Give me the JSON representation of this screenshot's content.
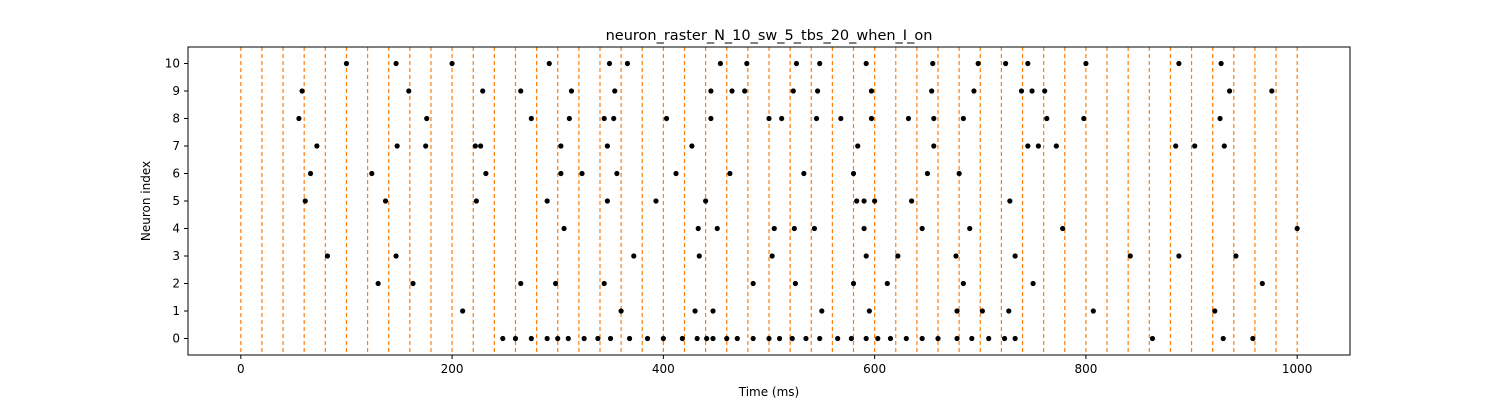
{
  "chart_data": {
    "type": "scatter",
    "title": "neuron_raster_N_10_sw_5_tbs_20_when_I_on",
    "xlabel": "Time (ms)",
    "ylabel": "Neuron index",
    "xlim": [
      -50,
      1050
    ],
    "ylim": [
      -0.6,
      10.6
    ],
    "x_ticks": [
      0,
      200,
      400,
      600,
      800,
      1000
    ],
    "y_ticks": [
      0,
      1,
      2,
      3,
      4,
      5,
      6,
      7,
      8,
      9,
      10
    ],
    "grid": false,
    "marker_color": "#000000",
    "vline_color": "#ff7f0e",
    "vline_style": "dashed",
    "vlines": [
      0,
      20,
      40,
      60,
      80,
      100,
      120,
      140,
      160,
      180,
      200,
      220,
      240,
      260,
      280,
      300,
      320,
      340,
      360,
      380,
      400,
      420,
      440,
      460,
      480,
      500,
      520,
      540,
      560,
      580,
      600,
      620,
      640,
      660,
      680,
      700,
      720,
      740,
      760,
      780,
      800,
      820,
      840,
      860,
      880,
      900,
      920,
      940,
      960,
      980,
      1000
    ],
    "series": [
      {
        "values": [
          [
            248,
            0
          ],
          [
            260,
            0
          ],
          [
            275,
            0
          ],
          [
            290,
            0
          ],
          [
            300,
            0
          ],
          [
            310,
            0
          ],
          [
            325,
            0
          ],
          [
            338,
            0
          ],
          [
            350,
            0
          ],
          [
            368,
            0
          ],
          [
            385,
            0
          ],
          [
            400,
            0
          ],
          [
            418,
            0
          ],
          [
            432,
            0
          ],
          [
            441,
            0
          ],
          [
            447,
            0
          ],
          [
            460,
            0
          ],
          [
            470,
            0
          ],
          [
            485,
            0
          ],
          [
            500,
            0
          ],
          [
            510,
            0
          ],
          [
            522,
            0
          ],
          [
            535,
            0
          ],
          [
            548,
            0
          ],
          [
            565,
            0
          ],
          [
            578,
            0
          ],
          [
            592,
            0
          ],
          [
            603,
            0
          ],
          [
            615,
            0
          ],
          [
            630,
            0
          ],
          [
            645,
            0
          ],
          [
            660,
            0
          ],
          [
            678,
            0
          ],
          [
            692,
            0
          ],
          [
            708,
            0
          ],
          [
            723,
            0
          ],
          [
            733,
            0
          ],
          [
            863,
            0
          ],
          [
            930,
            0
          ],
          [
            958,
            0
          ],
          [
            210,
            1
          ],
          [
            360,
            1
          ],
          [
            430,
            1
          ],
          [
            447,
            1
          ],
          [
            550,
            1
          ],
          [
            595,
            1
          ],
          [
            678,
            1
          ],
          [
            702,
            1
          ],
          [
            727,
            1
          ],
          [
            807,
            1
          ],
          [
            922,
            1
          ],
          [
            130,
            2
          ],
          [
            163,
            2
          ],
          [
            265,
            2
          ],
          [
            298,
            2
          ],
          [
            344,
            2
          ],
          [
            485,
            2
          ],
          [
            525,
            2
          ],
          [
            580,
            2
          ],
          [
            612,
            2
          ],
          [
            684,
            2
          ],
          [
            750,
            2
          ],
          [
            967,
            2
          ],
          [
            82,
            3
          ],
          [
            147,
            3
          ],
          [
            372,
            3
          ],
          [
            434,
            3
          ],
          [
            503,
            3
          ],
          [
            592,
            3
          ],
          [
            622,
            3
          ],
          [
            677,
            3
          ],
          [
            733,
            3
          ],
          [
            842,
            3
          ],
          [
            888,
            3
          ],
          [
            942,
            3
          ],
          [
            306,
            4
          ],
          [
            433,
            4
          ],
          [
            451,
            4
          ],
          [
            505,
            4
          ],
          [
            524,
            4
          ],
          [
            543,
            4
          ],
          [
            590,
            4
          ],
          [
            645,
            4
          ],
          [
            690,
            4
          ],
          [
            778,
            4
          ],
          [
            1000,
            4
          ],
          [
            61,
            5
          ],
          [
            137,
            5
          ],
          [
            223,
            5
          ],
          [
            290,
            5
          ],
          [
            347,
            5
          ],
          [
            393,
            5
          ],
          [
            440,
            5
          ],
          [
            583,
            5
          ],
          [
            590,
            5
          ],
          [
            600,
            5
          ],
          [
            635,
            5
          ],
          [
            728,
            5
          ],
          [
            66,
            6
          ],
          [
            124,
            6
          ],
          [
            232,
            6
          ],
          [
            303,
            6
          ],
          [
            323,
            6
          ],
          [
            356,
            6
          ],
          [
            412,
            6
          ],
          [
            463,
            6
          ],
          [
            533,
            6
          ],
          [
            580,
            6
          ],
          [
            650,
            6
          ],
          [
            680,
            6
          ],
          [
            72,
            7
          ],
          [
            148,
            7
          ],
          [
            175,
            7
          ],
          [
            222,
            7
          ],
          [
            227,
            7
          ],
          [
            303,
            7
          ],
          [
            347,
            7
          ],
          [
            427,
            7
          ],
          [
            584,
            7
          ],
          [
            656,
            7
          ],
          [
            745,
            7
          ],
          [
            755,
            7
          ],
          [
            772,
            7
          ],
          [
            885,
            7
          ],
          [
            903,
            7
          ],
          [
            931,
            7
          ],
          [
            55,
            8
          ],
          [
            176,
            8
          ],
          [
            275,
            8
          ],
          [
            311,
            8
          ],
          [
            344,
            8
          ],
          [
            353,
            8
          ],
          [
            403,
            8
          ],
          [
            445,
            8
          ],
          [
            500,
            8
          ],
          [
            512,
            8
          ],
          [
            545,
            8
          ],
          [
            568,
            8
          ],
          [
            597,
            8
          ],
          [
            632,
            8
          ],
          [
            656,
            8
          ],
          [
            684,
            8
          ],
          [
            763,
            8
          ],
          [
            798,
            8
          ],
          [
            927,
            8
          ],
          [
            58,
            9
          ],
          [
            159,
            9
          ],
          [
            229,
            9
          ],
          [
            265,
            9
          ],
          [
            313,
            9
          ],
          [
            354,
            9
          ],
          [
            445,
            9
          ],
          [
            465,
            9
          ],
          [
            477,
            9
          ],
          [
            523,
            9
          ],
          [
            546,
            9
          ],
          [
            597,
            9
          ],
          [
            654,
            9
          ],
          [
            694,
            9
          ],
          [
            739,
            9
          ],
          [
            749,
            9
          ],
          [
            761,
            9
          ],
          [
            936,
            9
          ],
          [
            976,
            9
          ],
          [
            100,
            10
          ],
          [
            147,
            10
          ],
          [
            200,
            10
          ],
          [
            292,
            10
          ],
          [
            349,
            10
          ],
          [
            366,
            10
          ],
          [
            454,
            10
          ],
          [
            479,
            10
          ],
          [
            526,
            10
          ],
          [
            548,
            10
          ],
          [
            592,
            10
          ],
          [
            655,
            10
          ],
          [
            698,
            10
          ],
          [
            724,
            10
          ],
          [
            745,
            10
          ],
          [
            800,
            10
          ],
          [
            888,
            10
          ],
          [
            928,
            10
          ]
        ]
      }
    ]
  }
}
